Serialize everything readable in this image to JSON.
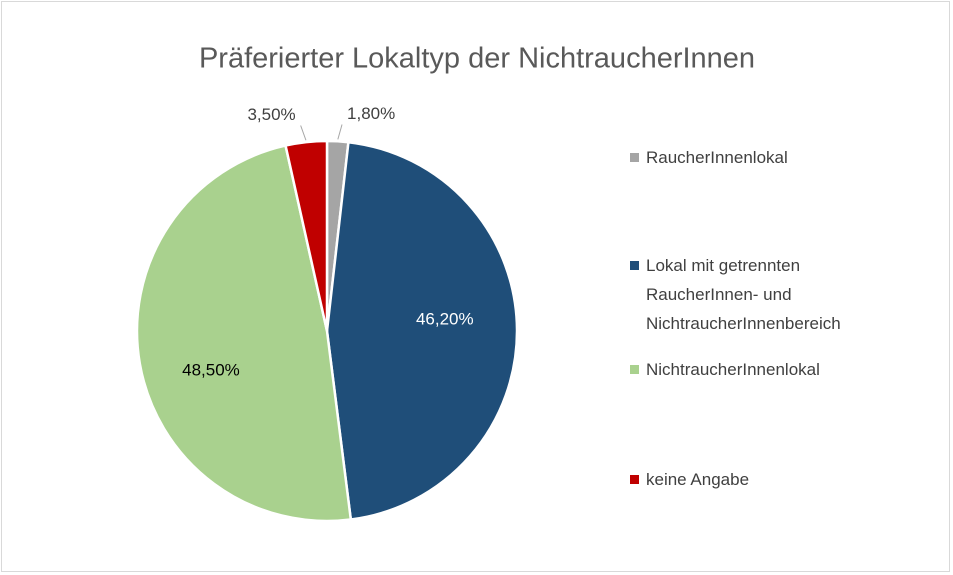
{
  "chart_data": {
    "type": "pie",
    "title": "Präferierter Lokaltyp der NichtraucherInnen",
    "categories": [
      "RaucherInnenlokal",
      "Lokal mit getrennten RaucherInnen- und NichtraucherInnenbereich",
      "NichtraucherInnenlokal",
      "keine Angabe"
    ],
    "values": [
      1.8,
      46.2,
      48.5,
      3.5
    ],
    "value_labels": [
      "1,80%",
      "46,20%",
      "48,50%",
      "3,50%"
    ],
    "colors": [
      "#a5a5a5",
      "#1f4e79",
      "#a9d18e",
      "#c00000"
    ],
    "legend": "right"
  }
}
